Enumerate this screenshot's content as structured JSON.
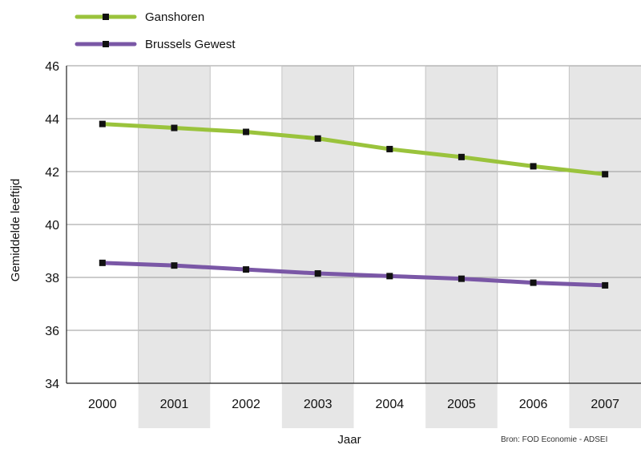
{
  "chart_data": {
    "type": "line",
    "title": "",
    "xlabel": "Jaar",
    "ylabel": "Gemiddelde leeftijd",
    "categories": [
      "2000",
      "2001",
      "2002",
      "2003",
      "2004",
      "2005",
      "2006",
      "2007"
    ],
    "ylim": [
      34,
      46
    ],
    "yticks": [
      34,
      36,
      38,
      40,
      42,
      44,
      46
    ],
    "grid": true,
    "legend_position": "top-left",
    "series": [
      {
        "name": "Ganshoren",
        "color": "#9ac33c",
        "values": [
          43.8,
          43.65,
          43.5,
          43.25,
          42.85,
          42.55,
          42.2,
          41.9
        ]
      },
      {
        "name": "Brussels Gewest",
        "color": "#7a57a6",
        "values": [
          38.55,
          38.45,
          38.3,
          38.15,
          38.05,
          37.95,
          37.8,
          37.7
        ]
      }
    ],
    "marker_color": "#111111",
    "band_color": "#e6e6e6",
    "source": "Bron: FOD Economie - ADSEI"
  }
}
